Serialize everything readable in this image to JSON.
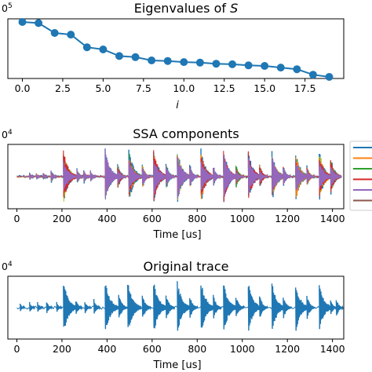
{
  "chart_data": [
    {
      "type": "line",
      "title": "Eigenvalues of S",
      "title_prefix": "Eigenvalues of ",
      "title_symbol": "S",
      "xlabel": "i",
      "ylabel": "",
      "exponent_label_fragment": "0",
      "exponent_sup": "5",
      "log_y": true,
      "xlim": [
        -0.9,
        19.9
      ],
      "xticks": [
        0.0,
        2.5,
        5.0,
        7.5,
        10.0,
        12.5,
        15.0,
        17.5
      ],
      "xtick_labels": [
        "0.0",
        "2.5",
        "5.0",
        "7.5",
        "10.0",
        "12.5",
        "15.0",
        "17.5"
      ],
      "x": [
        0,
        1,
        2,
        3,
        4,
        5,
        6,
        7,
        8,
        9,
        10,
        11,
        12,
        13,
        14,
        15,
        16,
        17,
        18,
        19
      ],
      "y_rel": [
        1.0,
        0.98,
        0.8,
        0.77,
        0.54,
        0.5,
        0.38,
        0.36,
        0.3,
        0.29,
        0.27,
        0.26,
        0.24,
        0.23,
        0.21,
        0.2,
        0.17,
        0.14,
        0.04,
        0.0
      ],
      "color": "#1f77b4"
    },
    {
      "type": "line",
      "title": "SSA components",
      "xlabel": "Time [us]",
      "exponent_label_fragment": "0",
      "exponent_sup": "4",
      "xlim": [
        -40,
        1450
      ],
      "xticks": [
        0,
        200,
        400,
        600,
        800,
        1000,
        1200,
        1400
      ],
      "xtick_labels": [
        "0",
        "200",
        "400",
        "600",
        "800",
        "1000",
        "1200",
        "1400"
      ],
      "burst_times": [
        60,
        90,
        120,
        155,
        210,
        270,
        300,
        330,
        395,
        450,
        500,
        560,
        610,
        665,
        715,
        770,
        820,
        875,
        920,
        975,
        1030,
        1080,
        1135,
        1185,
        1240,
        1290,
        1345,
        1395
      ],
      "burst_amps": [
        0.15,
        0.12,
        0.15,
        0.25,
        0.95,
        0.3,
        0.28,
        0.25,
        0.95,
        0.5,
        0.95,
        0.45,
        0.95,
        0.5,
        0.95,
        0.45,
        0.95,
        0.4,
        0.95,
        0.45,
        0.9,
        0.45,
        0.9,
        0.4,
        0.9,
        0.4,
        0.9,
        0.7
      ],
      "series_colors": [
        "#1f77b4",
        "#ff7f0e",
        "#2ca02c",
        "#d62728",
        "#9467bd",
        "#8c564b",
        "#bcbd22"
      ]
    },
    {
      "type": "line",
      "title": "Original trace",
      "xlabel": "Time [us]",
      "exponent_label_fragment": "0",
      "exponent_sup": "4",
      "xlim": [
        -40,
        1450
      ],
      "xticks": [
        0,
        200,
        400,
        600,
        800,
        1000,
        1200,
        1400
      ],
      "xtick_labels": [
        "0",
        "200",
        "400",
        "600",
        "800",
        "1000",
        "1200",
        "1400"
      ],
      "burst_times": [
        18,
        60,
        95,
        135,
        180,
        210,
        265,
        305,
        345,
        395,
        455,
        495,
        560,
        610,
        665,
        715,
        770,
        820,
        875,
        920,
        975,
        1030,
        1080,
        1135,
        1185,
        1240,
        1290,
        1345,
        1395,
        1420
      ],
      "burst_amps": [
        0.15,
        0.2,
        0.2,
        0.25,
        0.2,
        0.95,
        0.3,
        0.25,
        0.3,
        0.95,
        0.5,
        0.95,
        0.5,
        0.95,
        0.5,
        0.95,
        0.45,
        0.95,
        0.45,
        0.95,
        0.45,
        0.9,
        0.45,
        0.9,
        0.45,
        0.9,
        0.45,
        0.9,
        0.3,
        0.35
      ],
      "color": "#1f77b4"
    }
  ]
}
